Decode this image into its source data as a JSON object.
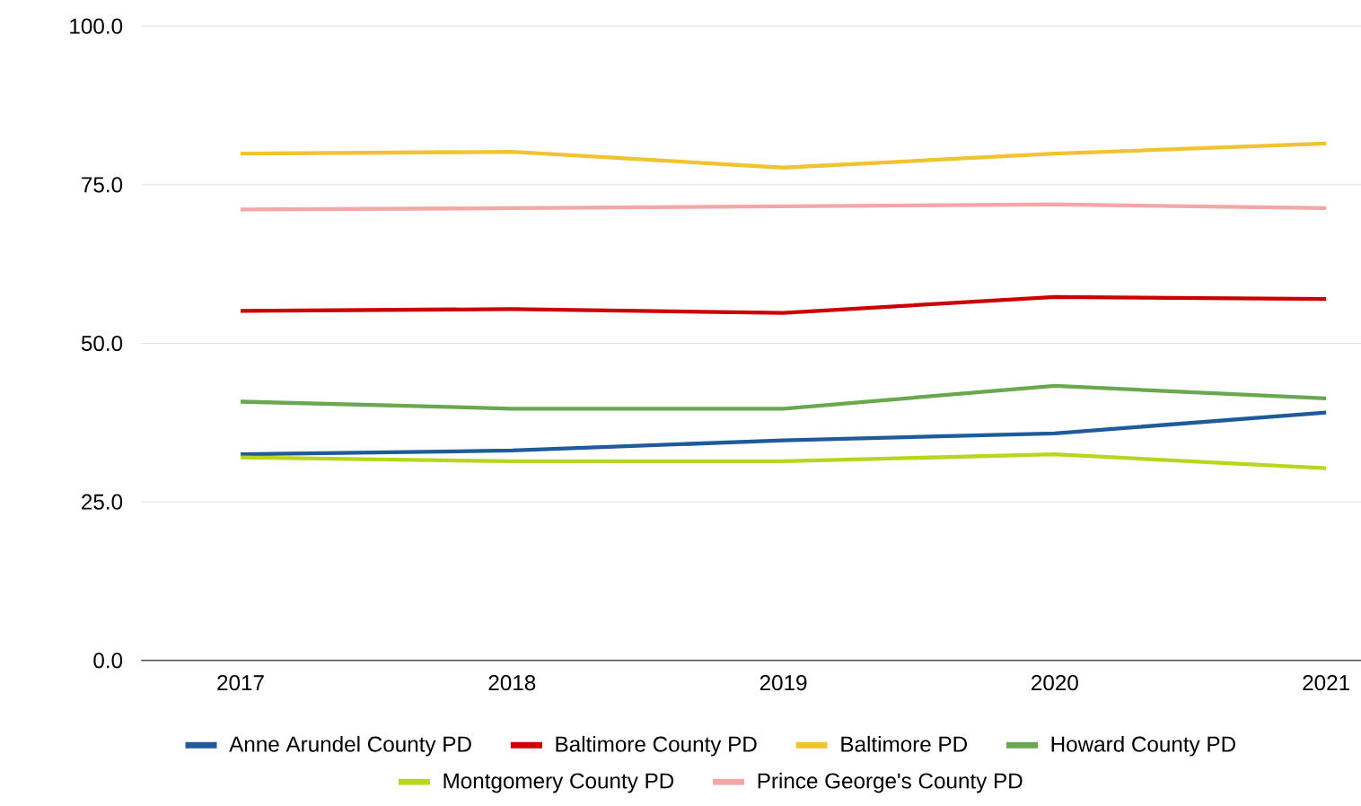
{
  "chart_data": {
    "type": "line",
    "categories": [
      "2017",
      "2018",
      "2019",
      "2020",
      "2021"
    ],
    "series": [
      {
        "name": "Anne Arundel County PD",
        "color": "#1f5b9a",
        "values": [
          32.5,
          33.1,
          34.7,
          35.8,
          39.1
        ]
      },
      {
        "name": "Baltimore County PD",
        "color": "#cc0000",
        "values": [
          55.1,
          55.4,
          54.8,
          57.3,
          57.0
        ]
      },
      {
        "name": "Baltimore PD",
        "color": "#f1c232",
        "values": [
          79.9,
          80.2,
          77.7,
          79.9,
          81.5
        ]
      },
      {
        "name": "Howard County PD",
        "color": "#6aa84f",
        "values": [
          40.8,
          39.7,
          39.7,
          43.3,
          41.3
        ]
      },
      {
        "name": "Montgomery County PD",
        "color": "#b8d61e",
        "values": [
          32.0,
          31.4,
          31.4,
          32.5,
          30.3
        ]
      },
      {
        "name": "Prince George's County PD",
        "color": "#f4a7a7",
        "values": [
          71.1,
          71.3,
          71.6,
          71.9,
          71.3
        ]
      }
    ],
    "ylim": [
      0,
      100
    ],
    "yticks": [
      {
        "value": 0,
        "label": "0.0"
      },
      {
        "value": 25,
        "label": "25.0"
      },
      {
        "value": 50,
        "label": "50.0"
      },
      {
        "value": 75,
        "label": "75.0"
      },
      {
        "value": 100,
        "label": "100.0"
      }
    ],
    "grid": "y",
    "legend": "bottom"
  }
}
